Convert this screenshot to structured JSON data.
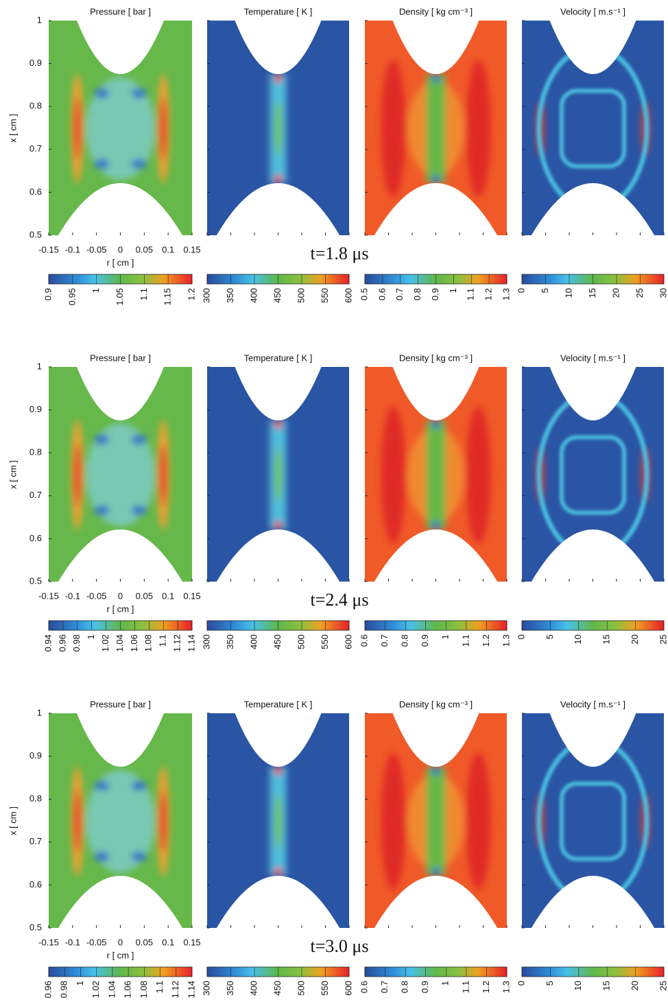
{
  "chart_data": {
    "type": "heatmap",
    "xlabel": "r [ cm ]",
    "ylabel": "x [ cm ]",
    "xlim": [
      -0.15,
      0.15
    ],
    "ylim": [
      0.5,
      1
    ],
    "xticks": [
      -0.15,
      -0.1,
      -0.05,
      0,
      0.05,
      0.1,
      0.15
    ],
    "yticks": [
      0.5,
      0.6,
      0.7,
      0.8,
      0.9,
      1
    ],
    "rows": [
      {
        "annotation": "t=1.8 μs",
        "panels": [
          {
            "title": "Pressure [ bar ]",
            "colorbar": {
              "lim": [
                0.9,
                1.2
              ],
              "ticks": [
                0.9,
                0.95,
                1,
                1.05,
                1.1,
                1.15,
                1.2
              ]
            }
          },
          {
            "title": "Temperature [ K ]",
            "colorbar": {
              "lim": [
                300,
                600
              ],
              "ticks": [
                300,
                350,
                400,
                450,
                500,
                550,
                600
              ]
            }
          },
          {
            "title": "Density [ kg cm⁻³ ]",
            "colorbar": {
              "lim": [
                0.5,
                1.3
              ],
              "ticks": [
                0.5,
                0.6,
                0.7,
                0.8,
                0.9,
                1,
                1.1,
                1.2,
                1.3
              ]
            }
          },
          {
            "title": "Velocity [ m.s⁻¹ ]",
            "colorbar": {
              "lim": [
                0,
                30
              ],
              "ticks": [
                0,
                5,
                10,
                15,
                20,
                25,
                30
              ]
            }
          }
        ]
      },
      {
        "annotation": "t=2.4 μs",
        "panels": [
          {
            "title": "Pressure [ bar ]",
            "colorbar": {
              "lim": [
                0.94,
                1.14
              ],
              "ticks": [
                0.94,
                0.96,
                0.98,
                1,
                1.02,
                1.04,
                1.06,
                1.08,
                1.1,
                1.12,
                1.14
              ]
            }
          },
          {
            "title": "Temperature [ K ]",
            "colorbar": {
              "lim": [
                300,
                600
              ],
              "ticks": [
                300,
                350,
                400,
                450,
                500,
                550,
                600
              ]
            }
          },
          {
            "title": "Density [ kg cm⁻³ ]",
            "colorbar": {
              "lim": [
                0.6,
                1.3
              ],
              "ticks": [
                0.6,
                0.7,
                0.8,
                0.9,
                1,
                1.1,
                1.2,
                1.3
              ]
            }
          },
          {
            "title": "Velocity [ m.s⁻¹ ]",
            "colorbar": {
              "lim": [
                0,
                25
              ],
              "ticks": [
                0,
                5,
                10,
                15,
                20,
                25
              ]
            }
          }
        ]
      },
      {
        "annotation": "t=3.0 μs",
        "panels": [
          {
            "title": "Pressure [ bar ]",
            "colorbar": {
              "lim": [
                0.96,
                1.14
              ],
              "ticks": [
                0.96,
                0.98,
                1,
                1.02,
                1.04,
                1.06,
                1.08,
                1.1,
                1.12,
                1.14
              ]
            }
          },
          {
            "title": "Temperature [ K ]",
            "colorbar": {
              "lim": [
                300,
                600
              ],
              "ticks": [
                300,
                350,
                400,
                450,
                500,
                550,
                600
              ]
            }
          },
          {
            "title": "Density [ kg cm⁻³ ]",
            "colorbar": {
              "lim": [
                0.6,
                1.3
              ],
              "ticks": [
                0.6,
                0.7,
                0.8,
                0.9,
                1,
                1.1,
                1.2,
                1.3
              ]
            }
          },
          {
            "title": "Velocity [ m.s⁻¹ ]",
            "colorbar": {
              "lim": [
                0,
                25
              ],
              "ticks": [
                0,
                5,
                10,
                15,
                20,
                25
              ]
            }
          }
        ]
      }
    ]
  }
}
